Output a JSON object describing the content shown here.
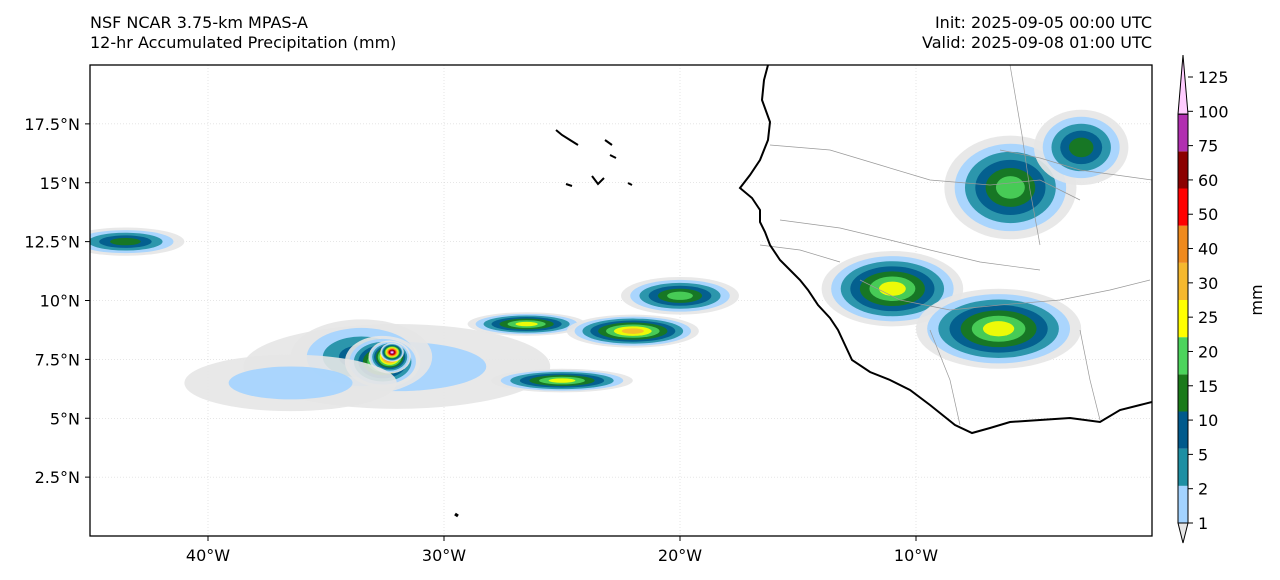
{
  "header": {
    "model": "NSF NCAR 3.75-km MPAS-A",
    "field": "12-hr Accumulated Precipitation (mm)",
    "init": "Init: 2025-09-05 00:00 UTC",
    "valid": "Valid: 2025-09-08 01:00 UTC"
  },
  "map": {
    "lon_range": [
      -45,
      0
    ],
    "lat_range": [
      0,
      20
    ],
    "lon_ticks": [
      {
        "value": -40,
        "label": "40°W"
      },
      {
        "value": -30,
        "label": "30°W"
      },
      {
        "value": -20,
        "label": "20°W"
      },
      {
        "value": -10,
        "label": "10°W"
      }
    ],
    "lat_ticks": [
      {
        "value": 17.5,
        "label": "17.5°N"
      },
      {
        "value": 15,
        "label": "15°N"
      },
      {
        "value": 12.5,
        "label": "12.5°N"
      },
      {
        "value": 10,
        "label": "10°N"
      },
      {
        "value": 7.5,
        "label": "7.5°N"
      },
      {
        "value": 5,
        "label": "5°N"
      },
      {
        "value": 2.5,
        "label": "2.5°N"
      }
    ],
    "gridlines": true,
    "coastline_color": "#000000",
    "border_color": "#999999"
  },
  "colorbar": {
    "unit_label": "mm",
    "levels": [
      "1",
      "2",
      "5",
      "10",
      "15",
      "20",
      "25",
      "30",
      "40",
      "50",
      "60",
      "75",
      "100",
      "125"
    ],
    "colors": [
      "#e6e6e6",
      "#a3d3ff",
      "#1e8fa3",
      "#005a8c",
      "#1a7a1a",
      "#4cd45c",
      "#ffff00",
      "#f5b82e",
      "#ef8a1e",
      "#ff0000",
      "#8b0000",
      "#b12fb0",
      "#ffccff"
    ]
  },
  "precip_regions": [
    {
      "lon": -32.0,
      "lat": 7.2,
      "rlon": 6.5,
      "rlat": 1.8,
      "level": 1
    },
    {
      "lon": -33.5,
      "lat": 7.6,
      "rlon": 3.0,
      "rlat": 1.6,
      "level": 3
    },
    {
      "lon": -32.6,
      "lat": 7.4,
      "rlon": 1.6,
      "rlat": 1.1,
      "level": 7
    },
    {
      "lon": -32.3,
      "lat": 7.6,
      "rlon": 0.9,
      "rlat": 0.7,
      "level": 10
    },
    {
      "lon": -32.2,
      "lat": 7.8,
      "rlon": 0.5,
      "rlat": 0.4,
      "level": 12
    },
    {
      "lon": -36.5,
      "lat": 6.5,
      "rlon": 4.5,
      "rlat": 1.2,
      "level": 1
    },
    {
      "lon": -26.5,
      "lat": 9.0,
      "rlon": 2.5,
      "rlat": 0.5,
      "level": 6
    },
    {
      "lon": -22.0,
      "lat": 8.7,
      "rlon": 2.8,
      "rlat": 0.7,
      "level": 7
    },
    {
      "lon": -25.0,
      "lat": 6.6,
      "rlon": 3.0,
      "rlat": 0.5,
      "level": 6
    },
    {
      "lon": -20.0,
      "lat": 10.2,
      "rlon": 2.5,
      "rlat": 0.8,
      "level": 5
    },
    {
      "lon": -43.5,
      "lat": 12.5,
      "rlon": 2.5,
      "rlat": 0.6,
      "level": 4
    },
    {
      "lon": -11.0,
      "lat": 10.5,
      "rlon": 3.0,
      "rlat": 1.6,
      "level": 6
    },
    {
      "lon": -6.5,
      "lat": 8.8,
      "rlon": 3.5,
      "rlat": 1.7,
      "level": 6
    },
    {
      "lon": -6.0,
      "lat": 14.8,
      "rlon": 2.8,
      "rlat": 2.2,
      "level": 5
    },
    {
      "lon": -3.0,
      "lat": 16.5,
      "rlon": 2.0,
      "rlat": 1.6,
      "level": 4
    }
  ]
}
